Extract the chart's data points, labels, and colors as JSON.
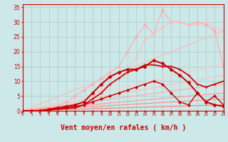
{
  "background_color": "#cce8e8",
  "grid_color": "#aacccc",
  "xlabel": "Vent moyen/en rafales ( km/h )",
  "xlabel_color": "#cc0000",
  "xlabel_fontsize": 7,
  "xtick_labels": [
    "0",
    "1",
    "2",
    "3",
    "4",
    "5",
    "6",
    "7",
    "8",
    "9",
    "10",
    "11",
    "12",
    "13",
    "14",
    "15",
    "16",
    "17",
    "18",
    "19",
    "20",
    "21",
    "22",
    "23"
  ],
  "yticks": [
    0,
    5,
    10,
    15,
    20,
    25,
    30,
    35
  ],
  "xlim": [
    0,
    23
  ],
  "ylim": [
    0,
    36
  ],
  "lines": [
    {
      "x": [
        0,
        1,
        2,
        3,
        4,
        5,
        6,
        7,
        8,
        9,
        10,
        11,
        12,
        13,
        14,
        15,
        16,
        17,
        18,
        19,
        20,
        21,
        22,
        23
      ],
      "y": [
        0,
        0,
        0,
        0.5,
        1.5,
        3,
        5,
        7,
        9,
        11,
        13,
        15,
        20,
        25,
        29,
        26,
        34,
        30,
        30,
        29,
        30,
        29,
        27,
        15
      ],
      "color": "#ffaaaa",
      "lw": 0.8,
      "marker": "o",
      "ms": 2.5,
      "linestyle": "-"
    },
    {
      "x": [
        0,
        23
      ],
      "y": [
        0,
        27
      ],
      "color": "#ffbbbb",
      "lw": 0.9,
      "marker": null,
      "ms": 0,
      "linestyle": "-"
    },
    {
      "x": [
        0,
        1,
        2,
        3,
        4,
        5,
        6,
        7,
        8,
        9,
        10,
        11,
        12,
        13,
        14,
        15,
        16,
        17,
        18,
        19,
        20,
        21,
        22,
        23
      ],
      "y": [
        0,
        0,
        0,
        0,
        0.5,
        1,
        2,
        3,
        5,
        7,
        9,
        11,
        14,
        18,
        24,
        26,
        28,
        30,
        30,
        29,
        29,
        30,
        28,
        27
      ],
      "color": "#ffbbbb",
      "lw": 0.8,
      "marker": "o",
      "ms": 2.0,
      "linestyle": "-"
    },
    {
      "x": [
        0,
        23
      ],
      "y": [
        0,
        16
      ],
      "color": "#ffcccc",
      "lw": 0.9,
      "marker": null,
      "ms": 0,
      "linestyle": "-"
    },
    {
      "x": [
        0,
        23
      ],
      "y": [
        0,
        12
      ],
      "color": "#ffbbbb",
      "lw": 0.8,
      "marker": null,
      "ms": 0,
      "linestyle": "-"
    },
    {
      "x": [
        0,
        23
      ],
      "y": [
        0,
        9
      ],
      "color": "#ffaaaa",
      "lw": 0.8,
      "marker": null,
      "ms": 0,
      "linestyle": "-"
    },
    {
      "x": [
        0,
        23
      ],
      "y": [
        0,
        6
      ],
      "color": "#ff9999",
      "lw": 0.8,
      "marker": null,
      "ms": 0,
      "linestyle": "-"
    },
    {
      "x": [
        0,
        23
      ],
      "y": [
        0,
        4
      ],
      "color": "#ff8888",
      "lw": 0.8,
      "marker": null,
      "ms": 0,
      "linestyle": "-"
    },
    {
      "x": [
        0,
        23
      ],
      "y": [
        0,
        2
      ],
      "color": "#ff7777",
      "lw": 0.8,
      "marker": null,
      "ms": 0,
      "linestyle": "-"
    },
    {
      "x": [
        0,
        1,
        2,
        3,
        4,
        5,
        6,
        7,
        8,
        9,
        10,
        11,
        12,
        13,
        14,
        15,
        16,
        17,
        18,
        19,
        20,
        21,
        22,
        23
      ],
      "y": [
        0,
        0,
        0,
        0.3,
        0.5,
        0.8,
        1,
        2,
        4,
        6,
        9,
        11,
        13,
        14,
        15.5,
        15.5,
        15,
        15,
        14,
        12,
        9,
        8,
        9,
        10
      ],
      "color": "#cc0000",
      "lw": 1.2,
      "marker": "+",
      "ms": 3.5,
      "linestyle": "-"
    },
    {
      "x": [
        0,
        1,
        2,
        3,
        4,
        5,
        6,
        7,
        8,
        9,
        10,
        11,
        12,
        13,
        14,
        15,
        16,
        17,
        18,
        19,
        20,
        21,
        22,
        23
      ],
      "y": [
        0,
        0,
        0,
        0.5,
        1,
        1.5,
        2,
        3,
        6,
        9,
        11.5,
        13,
        14,
        14,
        15,
        17,
        16,
        14,
        12,
        9.5,
        6,
        3,
        2,
        1.5
      ],
      "color": "#cc0000",
      "lw": 1.4,
      "marker": "D",
      "ms": 2.5,
      "linestyle": "-"
    },
    {
      "x": [
        0,
        1,
        2,
        3,
        4,
        5,
        6,
        7,
        8,
        9,
        10,
        11,
        12,
        13,
        14,
        15,
        16,
        17,
        18,
        19,
        20,
        21,
        22,
        23
      ],
      "y": [
        0,
        0,
        0,
        0.5,
        1,
        1,
        1.5,
        2,
        3,
        4,
        5,
        6,
        7,
        8,
        9,
        10,
        9,
        6,
        3,
        2,
        6,
        3,
        5,
        2
      ],
      "color": "#cc0000",
      "lw": 1.0,
      "marker": "D",
      "ms": 2.0,
      "linestyle": "-"
    }
  ]
}
